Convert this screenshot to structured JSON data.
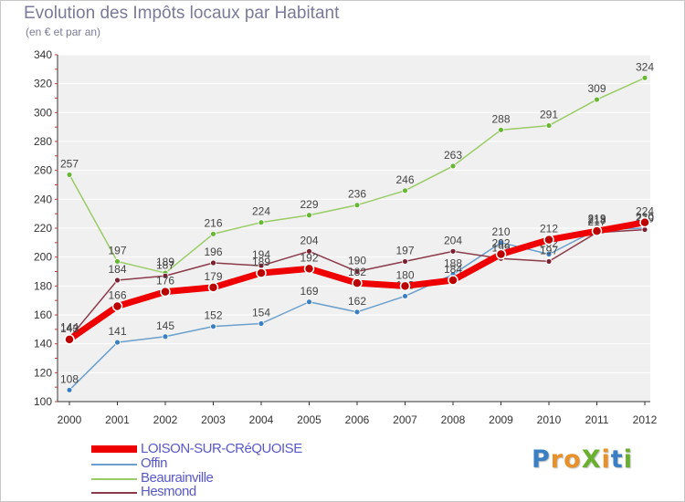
{
  "title": "Evolution des Impôts locaux par Habitant",
  "subtitle": "(en € et par an)",
  "logo": {
    "text": "ProXiti",
    "colors": [
      "#3a7fc4",
      "#e8902a",
      "#e8902a",
      "#6ab02e",
      "#e8902a",
      "#3a7fc4",
      "#6ab02e"
    ]
  },
  "chart_data": {
    "type": "line",
    "title": "Evolution des Impôts locaux par Habitant",
    "subtitle": "(en € et par an)",
    "xlabel": "",
    "ylabel": "",
    "x": [
      "2000",
      "2001",
      "2002",
      "2003",
      "2004",
      "2005",
      "2006",
      "2007",
      "2008",
      "2009",
      "2010",
      "2011",
      "2012"
    ],
    "ylim": [
      100,
      340
    ],
    "yticks": [
      100,
      120,
      140,
      160,
      180,
      200,
      220,
      240,
      260,
      280,
      300,
      320,
      340
    ],
    "grid": "horizontal",
    "legend_position": "bottom-left",
    "series": [
      {
        "name": "Beaurainville",
        "color": "#99cc66",
        "marker": "#66b833",
        "width": 1.5,
        "values": [
          257,
          197,
          189,
          216,
          224,
          229,
          236,
          246,
          263,
          288,
          291,
          309,
          324
        ]
      },
      {
        "name": "Offin",
        "color": "#6b9fcc",
        "marker": "#3a7fc4",
        "width": 1.5,
        "values": [
          108,
          141,
          145,
          152,
          154,
          169,
          162,
          173,
          188,
          210,
          202,
          219,
          220
        ]
      },
      {
        "name": "Hesmond",
        "color": "#8a3a4a",
        "marker": "#7a2030",
        "width": 1.5,
        "values": [
          144,
          184,
          187,
          196,
          194,
          204,
          190,
          197,
          204,
          199,
          197,
          217,
          219
        ]
      },
      {
        "name": "LOISON-SUR-CRéQUOISE",
        "color": "#ee0000",
        "marker": "#bb0000",
        "width": 7,
        "values": [
          143,
          166,
          176,
          179,
          189,
          192,
          182,
          180,
          184,
          202,
          212,
          218,
          224
        ]
      }
    ],
    "legend_order": [
      "LOISON-SUR-CRéQUOISE",
      "Offin",
      "Beaurainville",
      "Hesmond"
    ]
  }
}
